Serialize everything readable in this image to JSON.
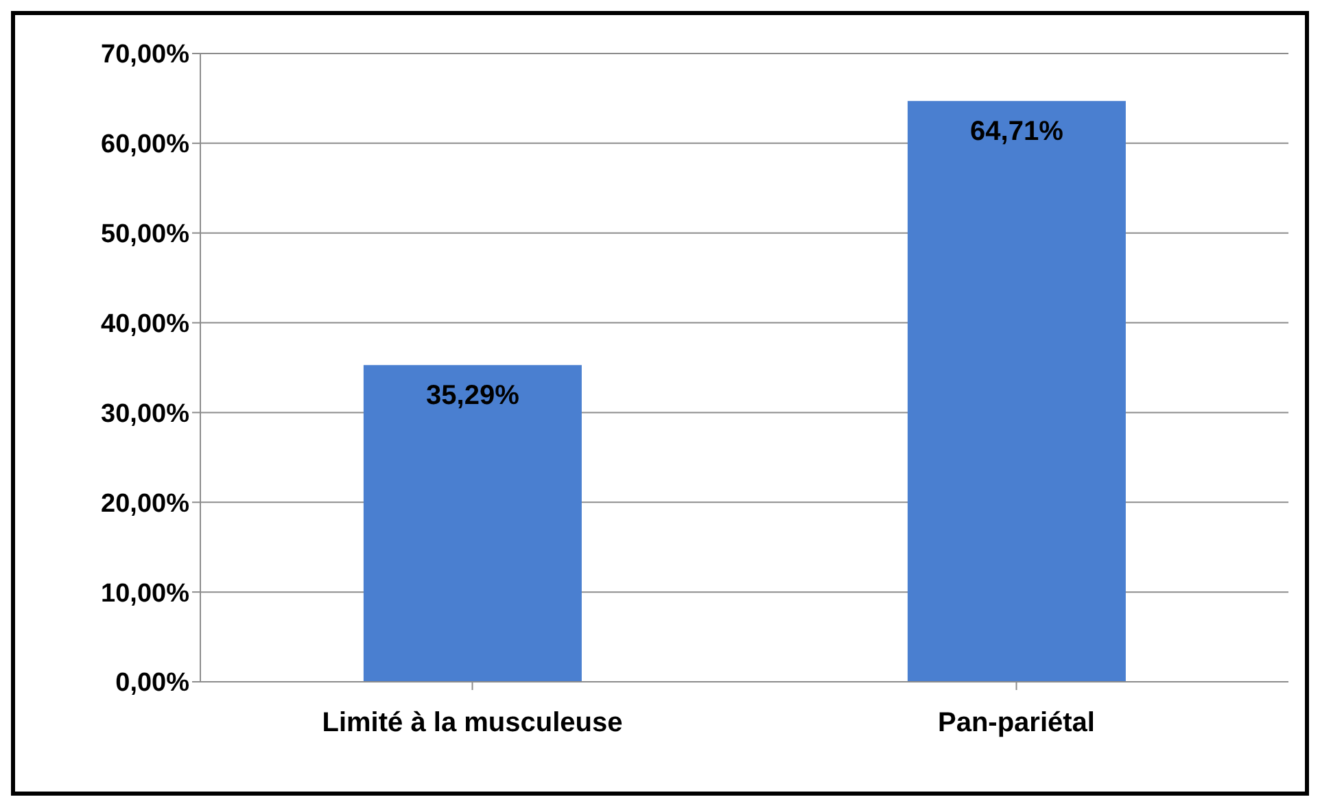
{
  "chart_data": {
    "type": "bar",
    "categories": [
      "Limité à la musculeuse",
      "Pan-pariétal"
    ],
    "values": [
      35.29,
      64.71
    ],
    "color": "#4a7fd0",
    "value_labels": [
      "35,29%",
      "64,71%"
    ],
    "ylim": [
      0,
      70
    ],
    "yticks": [
      {
        "value": 0,
        "label": "0,00%"
      },
      {
        "value": 10,
        "label": "10,00%"
      },
      {
        "value": 20,
        "label": "20,00%"
      },
      {
        "value": 30,
        "label": "30,00%"
      },
      {
        "value": 40,
        "label": "40,00%"
      },
      {
        "value": 50,
        "label": "50,00%"
      },
      {
        "value": 60,
        "label": "60,00%"
      },
      {
        "value": 70,
        "label": "70,00%"
      }
    ],
    "grid": "y"
  }
}
